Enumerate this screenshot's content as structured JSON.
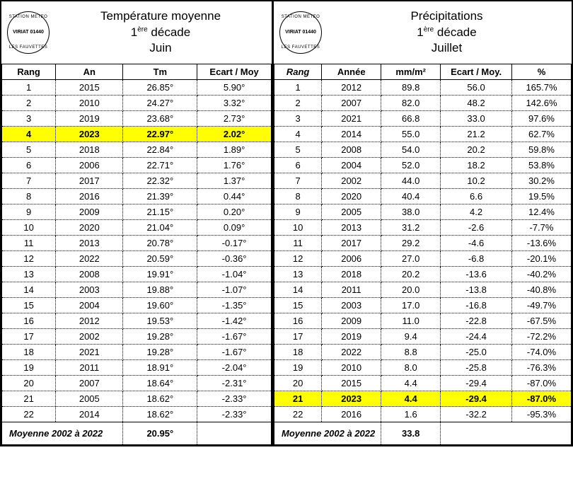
{
  "logo": {
    "top": "STATION METEO",
    "mid": "VIRIAT 01440",
    "bot": "LES FAUVETTES"
  },
  "left": {
    "title1": "Température moyenne",
    "title2_pre": "1",
    "title2_sup": "ère",
    "title2_post": " décade",
    "title3": "Juin",
    "columns": [
      "Rang",
      "An",
      "Tm",
      "Ecart / Moy"
    ],
    "col_widths": [
      "20%",
      "25%",
      "27.5%",
      "27.5%"
    ],
    "highlight_rank": 4,
    "rows": [
      [
        "1",
        "2015",
        "26.85°",
        "5.90°"
      ],
      [
        "2",
        "2010",
        "24.27°",
        "3.32°"
      ],
      [
        "3",
        "2019",
        "23.68°",
        "2.73°"
      ],
      [
        "4",
        "2023",
        "22.97°",
        "2.02°"
      ],
      [
        "5",
        "2018",
        "22.84°",
        "1.89°"
      ],
      [
        "6",
        "2006",
        "22.71°",
        "1.76°"
      ],
      [
        "7",
        "2017",
        "22.32°",
        "1.37°"
      ],
      [
        "8",
        "2016",
        "21.39°",
        "0.44°"
      ],
      [
        "9",
        "2009",
        "21.15°",
        "0.20°"
      ],
      [
        "10",
        "2020",
        "21.04°",
        "0.09°"
      ],
      [
        "11",
        "2013",
        "20.78°",
        "-0.17°"
      ],
      [
        "12",
        "2022",
        "20.59°",
        "-0.36°"
      ],
      [
        "13",
        "2008",
        "19.91°",
        "-1.04°"
      ],
      [
        "14",
        "2003",
        "19.88°",
        "-1.07°"
      ],
      [
        "15",
        "2004",
        "19.60°",
        "-1.35°"
      ],
      [
        "16",
        "2012",
        "19.53°",
        "-1.42°"
      ],
      [
        "17",
        "2002",
        "19.28°",
        "-1.67°"
      ],
      [
        "18",
        "2021",
        "19.28°",
        "-1.67°"
      ],
      [
        "19",
        "2011",
        "18.91°",
        "-2.04°"
      ],
      [
        "20",
        "2007",
        "18.64°",
        "-2.31°"
      ],
      [
        "21",
        "2005",
        "18.62°",
        "-2.33°"
      ],
      [
        "22",
        "2014",
        "18.62°",
        "-2.33°"
      ]
    ],
    "footer_label": "Moyenne 2002 à 2022",
    "footer_value": "20.95°"
  },
  "right": {
    "title1": "Précipitations",
    "title2_pre": "1",
    "title2_sup": "ère",
    "title2_post": " décade",
    "title3": "Juillet",
    "columns": [
      "Rang",
      "Année",
      "mm/m²",
      "Ecart / Moy.",
      "%"
    ],
    "col_widths": [
      "16%",
      "20%",
      "20%",
      "24%",
      "20%"
    ],
    "highlight_rank": 21,
    "rows": [
      [
        "1",
        "2012",
        "89.8",
        "56.0",
        "165.7%"
      ],
      [
        "2",
        "2007",
        "82.0",
        "48.2",
        "142.6%"
      ],
      [
        "3",
        "2021",
        "66.8",
        "33.0",
        "97.6%"
      ],
      [
        "4",
        "2014",
        "55.0",
        "21.2",
        "62.7%"
      ],
      [
        "5",
        "2008",
        "54.0",
        "20.2",
        "59.8%"
      ],
      [
        "6",
        "2004",
        "52.0",
        "18.2",
        "53.8%"
      ],
      [
        "7",
        "2002",
        "44.0",
        "10.2",
        "30.2%"
      ],
      [
        "8",
        "2020",
        "40.4",
        "6.6",
        "19.5%"
      ],
      [
        "9",
        "2005",
        "38.0",
        "4.2",
        "12.4%"
      ],
      [
        "10",
        "2013",
        "31.2",
        "-2.6",
        "-7.7%"
      ],
      [
        "11",
        "2017",
        "29.2",
        "-4.6",
        "-13.6%"
      ],
      [
        "12",
        "2006",
        "27.0",
        "-6.8",
        "-20.1%"
      ],
      [
        "13",
        "2018",
        "20.2",
        "-13.6",
        "-40.2%"
      ],
      [
        "14",
        "2011",
        "20.0",
        "-13.8",
        "-40.8%"
      ],
      [
        "15",
        "2003",
        "17.0",
        "-16.8",
        "-49.7%"
      ],
      [
        "16",
        "2009",
        "11.0",
        "-22.8",
        "-67.5%"
      ],
      [
        "17",
        "2019",
        "9.4",
        "-24.4",
        "-72.2%"
      ],
      [
        "18",
        "2022",
        "8.8",
        "-25.0",
        "-74.0%"
      ],
      [
        "19",
        "2010",
        "8.0",
        "-25.8",
        "-76.3%"
      ],
      [
        "20",
        "2015",
        "4.4",
        "-29.4",
        "-87.0%"
      ],
      [
        "21",
        "2023",
        "4.4",
        "-29.4",
        "-87.0%"
      ],
      [
        "22",
        "2016",
        "1.6",
        "-32.2",
        "-95.3%"
      ]
    ],
    "footer_label": "Moyenne 2002 à 2022",
    "footer_value": "33.8"
  }
}
